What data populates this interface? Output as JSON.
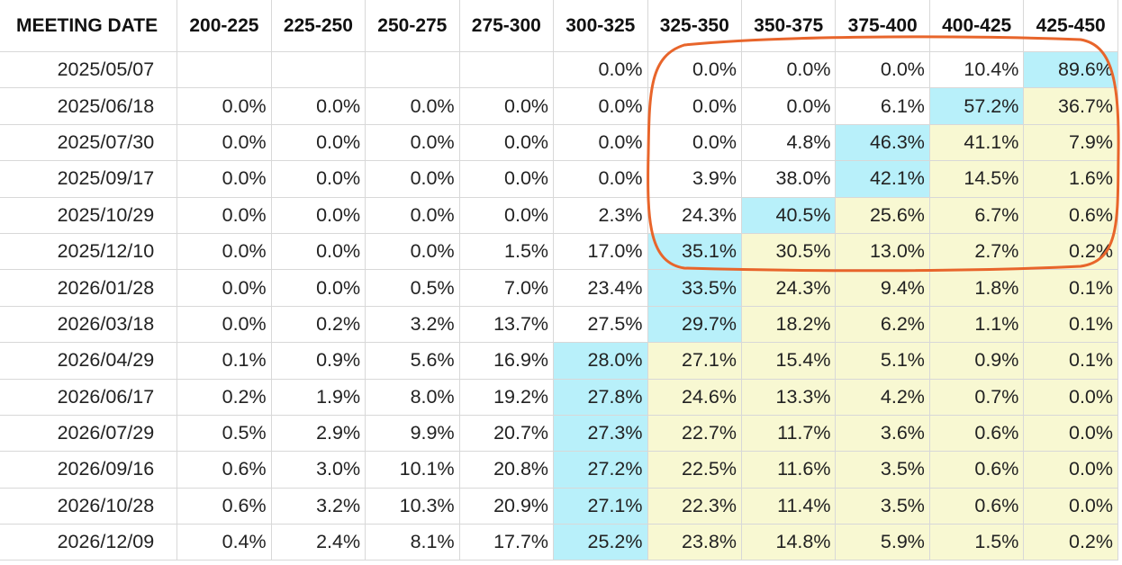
{
  "table": {
    "headers": [
      "MEETING DATE",
      "200-225",
      "225-250",
      "250-275",
      "275-300",
      "300-325",
      "325-350",
      "350-375",
      "375-400",
      "400-425",
      "425-450"
    ],
    "rows": [
      [
        "2025/05/07",
        null,
        null,
        null,
        null,
        "0.0%",
        "0.0%",
        "0.0%",
        "0.0%",
        "10.4%",
        "89.6%"
      ],
      [
        "2025/06/18",
        "0.0%",
        "0.0%",
        "0.0%",
        "0.0%",
        "0.0%",
        "0.0%",
        "0.0%",
        "6.1%",
        "57.2%",
        "36.7%"
      ],
      [
        "2025/07/30",
        "0.0%",
        "0.0%",
        "0.0%",
        "0.0%",
        "0.0%",
        "0.0%",
        "4.8%",
        "46.3%",
        "41.1%",
        "7.9%"
      ],
      [
        "2025/09/17",
        "0.0%",
        "0.0%",
        "0.0%",
        "0.0%",
        "0.0%",
        "3.9%",
        "38.0%",
        "42.1%",
        "14.5%",
        "1.6%"
      ],
      [
        "2025/10/29",
        "0.0%",
        "0.0%",
        "0.0%",
        "0.0%",
        "2.3%",
        "24.3%",
        "40.5%",
        "25.6%",
        "6.7%",
        "0.6%"
      ],
      [
        "2025/12/10",
        "0.0%",
        "0.0%",
        "0.0%",
        "1.5%",
        "17.0%",
        "35.1%",
        "30.5%",
        "13.0%",
        "2.7%",
        "0.2%"
      ],
      [
        "2026/01/28",
        "0.0%",
        "0.0%",
        "0.5%",
        "7.0%",
        "23.4%",
        "33.5%",
        "24.3%",
        "9.4%",
        "1.8%",
        "0.1%"
      ],
      [
        "2026/03/18",
        "0.0%",
        "0.2%",
        "3.2%",
        "13.7%",
        "27.5%",
        "29.7%",
        "18.2%",
        "6.2%",
        "1.1%",
        "0.1%"
      ],
      [
        "2026/04/29",
        "0.1%",
        "0.9%",
        "5.6%",
        "16.9%",
        "28.0%",
        "27.1%",
        "15.4%",
        "5.1%",
        "0.9%",
        "0.1%"
      ],
      [
        "2026/06/17",
        "0.2%",
        "1.9%",
        "8.0%",
        "19.2%",
        "27.8%",
        "24.6%",
        "13.3%",
        "4.2%",
        "0.7%",
        "0.0%"
      ],
      [
        "2026/07/29",
        "0.5%",
        "2.9%",
        "9.9%",
        "20.7%",
        "27.3%",
        "22.7%",
        "11.7%",
        "3.6%",
        "0.6%",
        "0.0%"
      ],
      [
        "2026/09/16",
        "0.6%",
        "3.0%",
        "10.1%",
        "20.8%",
        "27.2%",
        "22.5%",
        "11.6%",
        "3.5%",
        "0.6%",
        "0.0%"
      ],
      [
        "2026/10/28",
        "0.6%",
        "3.2%",
        "10.3%",
        "20.9%",
        "27.1%",
        "22.3%",
        "11.4%",
        "3.5%",
        "0.6%",
        "0.0%"
      ],
      [
        "2026/12/09",
        "0.4%",
        "2.4%",
        "8.1%",
        "17.7%",
        "25.2%",
        "23.8%",
        "14.8%",
        "5.9%",
        "1.5%",
        "0.2%"
      ]
    ]
  }
}
